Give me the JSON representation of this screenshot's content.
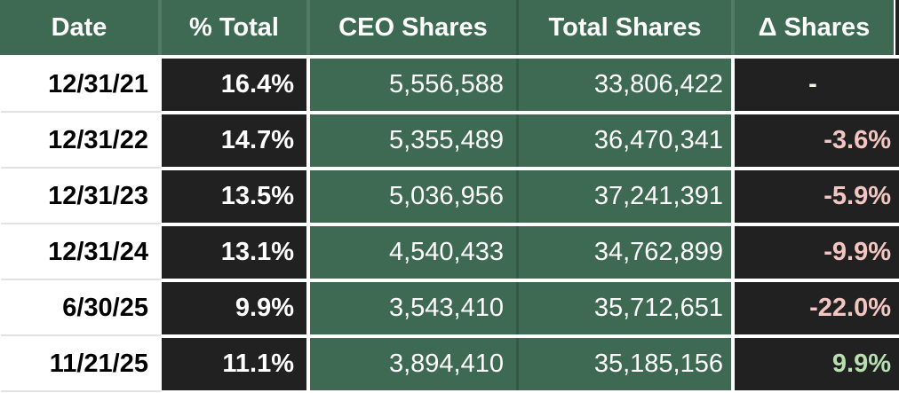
{
  "chart_data": {
    "type": "table",
    "columns": [
      "Date",
      "% Total",
      "CEO Shares",
      "Total Shares",
      "Δ Shares"
    ],
    "rows": [
      [
        "12/31/21",
        "16.4%",
        "5,556,588",
        "33,806,422",
        "-"
      ],
      [
        "12/31/22",
        "14.7%",
        "5,355,489",
        "36,470,341",
        "-3.6%"
      ],
      [
        "12/31/23",
        "13.5%",
        "5,036,956",
        "37,241,391",
        "-5.9%"
      ],
      [
        "12/31/24",
        "13.1%",
        "4,540,433",
        "34,762,899",
        "-9.9%"
      ],
      [
        "6/30/25",
        "9.9%",
        "3,543,410",
        "35,712,651",
        "-22.0%"
      ],
      [
        "11/21/25",
        "11.1%",
        "3,894,410",
        "35,185,156",
        "9.9%"
      ]
    ],
    "layout_hints": {
      "header_position": "top",
      "value_alignment": "right",
      "header_alignment": "center"
    }
  },
  "colors": {
    "header_green": "#3E6A54",
    "green_cell": "#3E6A54",
    "dark_cell": "#212121",
    "date_cell": "#FFFFFF",
    "header_text": "#FFFFFF",
    "date_text": "#000000",
    "value_text": "#FFFFFF",
    "negative_delta": "#F3C6C2",
    "positive_delta": "#B7DFB0",
    "gridline": "#E2E2E2"
  }
}
